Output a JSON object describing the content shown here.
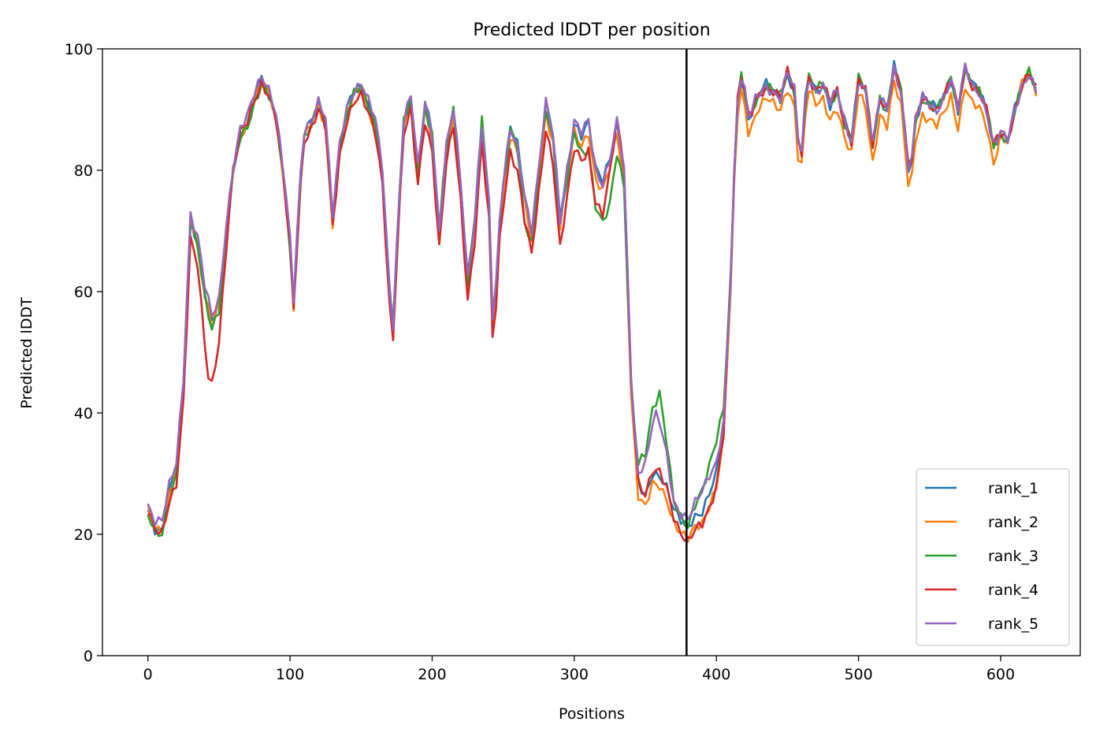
{
  "chart_data": {
    "type": "line",
    "title": "Predicted lDDT per position",
    "xlabel": "Positions",
    "ylabel": "Predicted lDDT",
    "xlim": [
      -32,
      656
    ],
    "ylim": [
      0,
      100
    ],
    "xticks": [
      0,
      100,
      200,
      300,
      400,
      500,
      600
    ],
    "yticks": [
      0,
      20,
      40,
      60,
      80,
      100
    ],
    "vline_x": 379,
    "legend_position": "lower-right",
    "grid": false,
    "colors": [
      "#1f77b4",
      "#ff7f0e",
      "#2ca02c",
      "#d62728",
      "#9467bd"
    ],
    "base_profile": [
      [
        0,
        24
      ],
      [
        5,
        21
      ],
      [
        10,
        21
      ],
      [
        15,
        27
      ],
      [
        20,
        31
      ],
      [
        25,
        45
      ],
      [
        30,
        72
      ],
      [
        35,
        68
      ],
      [
        40,
        60
      ],
      [
        45,
        55
      ],
      [
        50,
        58
      ],
      [
        55,
        70
      ],
      [
        60,
        80
      ],
      [
        65,
        86
      ],
      [
        70,
        88
      ],
      [
        75,
        92
      ],
      [
        80,
        95
      ],
      [
        85,
        93
      ],
      [
        90,
        89
      ],
      [
        95,
        80
      ],
      [
        100,
        68
      ],
      [
        103,
        56
      ],
      [
        106,
        75
      ],
      [
        110,
        86
      ],
      [
        115,
        88
      ],
      [
        120,
        91
      ],
      [
        125,
        88
      ],
      [
        130,
        72
      ],
      [
        135,
        84
      ],
      [
        140,
        90
      ],
      [
        145,
        93
      ],
      [
        150,
        94
      ],
      [
        155,
        91
      ],
      [
        160,
        88
      ],
      [
        165,
        80
      ],
      [
        172,
        52
      ],
      [
        176,
        72
      ],
      [
        180,
        88
      ],
      [
        185,
        92
      ],
      [
        190,
        80
      ],
      [
        195,
        91
      ],
      [
        200,
        86
      ],
      [
        205,
        70
      ],
      [
        210,
        84
      ],
      [
        215,
        90
      ],
      [
        220,
        78
      ],
      [
        225,
        62
      ],
      [
        230,
        72
      ],
      [
        235,
        88
      ],
      [
        240,
        75
      ],
      [
        243,
        52
      ],
      [
        248,
        74
      ],
      [
        255,
        87
      ],
      [
        260,
        84
      ],
      [
        265,
        76
      ],
      [
        270,
        70
      ],
      [
        275,
        80
      ],
      [
        280,
        91
      ],
      [
        285,
        86
      ],
      [
        290,
        72
      ],
      [
        295,
        80
      ],
      [
        300,
        88
      ],
      [
        305,
        86
      ],
      [
        310,
        88
      ],
      [
        315,
        80
      ],
      [
        320,
        78
      ],
      [
        325,
        82
      ],
      [
        330,
        88
      ],
      [
        335,
        80
      ],
      [
        340,
        45
      ],
      [
        345,
        28
      ],
      [
        350,
        26
      ],
      [
        355,
        30
      ],
      [
        360,
        30
      ],
      [
        365,
        28
      ],
      [
        370,
        24
      ],
      [
        375,
        22
      ],
      [
        380,
        21
      ],
      [
        385,
        23
      ],
      [
        390,
        24
      ],
      [
        395,
        27
      ],
      [
        400,
        30
      ],
      [
        405,
        38
      ],
      [
        410,
        62
      ],
      [
        414,
        90
      ],
      [
        418,
        96
      ],
      [
        423,
        88
      ],
      [
        428,
        92
      ],
      [
        435,
        94
      ],
      [
        440,
        93
      ],
      [
        445,
        92
      ],
      [
        450,
        96
      ],
      [
        455,
        93
      ],
      [
        459,
        80
      ],
      [
        464,
        96
      ],
      [
        470,
        93
      ],
      [
        475,
        94
      ],
      [
        480,
        91
      ],
      [
        485,
        93
      ],
      [
        490,
        88
      ],
      [
        495,
        85
      ],
      [
        500,
        95
      ],
      [
        505,
        93
      ],
      [
        510,
        84
      ],
      [
        515,
        92
      ],
      [
        520,
        90
      ],
      [
        525,
        97
      ],
      [
        530,
        93
      ],
      [
        536,
        78
      ],
      [
        540,
        88
      ],
      [
        545,
        92
      ],
      [
        550,
        91
      ],
      [
        555,
        90
      ],
      [
        560,
        92
      ],
      [
        565,
        95
      ],
      [
        570,
        90
      ],
      [
        575,
        97
      ],
      [
        580,
        94
      ],
      [
        585,
        93
      ],
      [
        590,
        90
      ],
      [
        595,
        84
      ],
      [
        600,
        86
      ],
      [
        605,
        85
      ],
      [
        610,
        90
      ],
      [
        615,
        94
      ],
      [
        620,
        96
      ],
      [
        625,
        93
      ]
    ],
    "series": [
      {
        "name": "rank_1",
        "offsets": [
          [
            0,
            0
          ]
        ]
      },
      {
        "name": "rank_2",
        "offsets": [
          [
            0,
            0
          ],
          [
            175,
            -1
          ],
          [
            595,
            -3
          ],
          [
            600,
            0
          ]
        ]
      },
      {
        "name": "rank_3",
        "offsets": [
          [
            0,
            -1
          ],
          [
            260,
            0
          ],
          [
            265,
            -5
          ],
          [
            275,
            0
          ],
          [
            300,
            -2
          ],
          [
            325,
            -8
          ],
          [
            340,
            0
          ],
          [
            348,
            6
          ],
          [
            360,
            13
          ],
          [
            370,
            2
          ],
          [
            380,
            0
          ],
          [
            400,
            6
          ],
          [
            410,
            0
          ]
        ]
      },
      {
        "name": "rank_4",
        "offsets": [
          [
            0,
            0
          ],
          [
            35,
            -4
          ],
          [
            43,
            -12
          ],
          [
            50,
            -6
          ],
          [
            60,
            0
          ],
          [
            320,
            -5
          ],
          [
            330,
            0
          ],
          [
            345,
            1
          ],
          [
            360,
            0
          ],
          [
            380,
            -2
          ],
          [
            395,
            -3
          ],
          [
            410,
            0
          ]
        ]
      },
      {
        "name": "rank_5",
        "offsets": [
          [
            0,
            1
          ],
          [
            240,
            0
          ],
          [
            342,
            0
          ],
          [
            350,
            6
          ],
          [
            358,
            10
          ],
          [
            370,
            1
          ],
          [
            380,
            2
          ],
          [
            390,
            3
          ],
          [
            410,
            0
          ]
        ]
      }
    ]
  }
}
